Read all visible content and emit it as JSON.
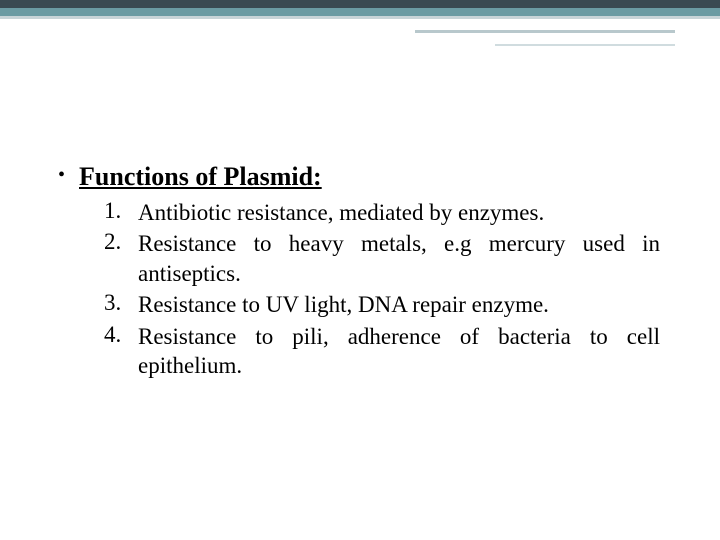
{
  "border": {
    "dark_color": "#3a4a52",
    "teal_color": "#6b9ba3",
    "light_color": "#c8d4d8"
  },
  "heading": "Functions of Plasmid:",
  "items": [
    {
      "num": "1.",
      "text": "Antibiotic resistance, mediated by enzymes."
    },
    {
      "num": "2.",
      "text": "Resistance to heavy metals, e.g mercury used in antiseptics."
    },
    {
      "num": "3.",
      "text": "Resistance to UV light, DNA repair enzyme."
    },
    {
      "num": "4.",
      "text": "Resistance to pili, adherence of bacteria to cell epithelium."
    }
  ],
  "typography": {
    "heading_fontsize": 26,
    "body_fontsize": 23,
    "font_family": "Georgia, serif"
  },
  "background_color": "#ffffff"
}
